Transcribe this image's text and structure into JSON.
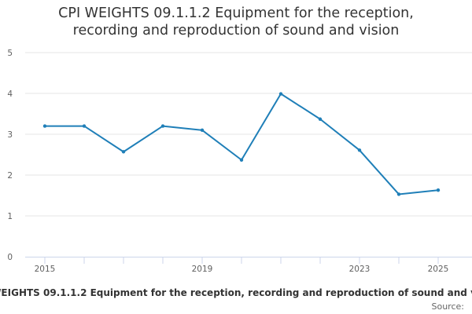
{
  "chart_data": {
    "type": "line",
    "title_lines": [
      "CPI WEIGHTS 09.1.1.2 Equipment for the reception,",
      "recording and reproduction of sound and vision"
    ],
    "x": [
      2015,
      2016,
      2017,
      2018,
      2019,
      2020,
      2021,
      2022,
      2023,
      2024,
      2025
    ],
    "x_tick_labels": [
      "2015",
      "2019",
      "2023",
      "2025"
    ],
    "y_tick_labels": [
      "0",
      "1",
      "2",
      "3",
      "4",
      "5"
    ],
    "xlim": [
      2015,
      2025
    ],
    "ylim": [
      0,
      5
    ],
    "grid": true,
    "legend_position": "bottom",
    "series": [
      {
        "name": "CPI WEIGHTS 09.1.1.2 Equipment for the reception, recording and reproduction of sound and vision",
        "color": "#1f7fb8",
        "values": [
          3.2,
          3.2,
          2.57,
          3.2,
          3.1,
          2.37,
          3.99,
          3.37,
          2.61,
          1.53,
          1.63
        ]
      }
    ],
    "source_label": "Source:"
  }
}
